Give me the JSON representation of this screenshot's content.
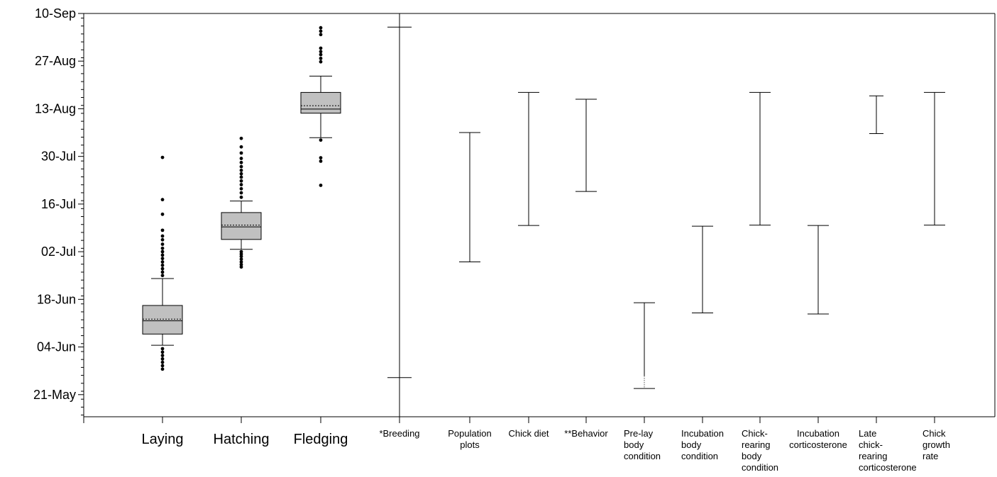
{
  "chart_data": {
    "type": "boxplot+range",
    "title": "",
    "xlabel": "",
    "ylabel": "",
    "y_axis": {
      "ticks": [
        {
          "label": "10-Sep",
          "day": 253
        },
        {
          "label": "27-Aug",
          "day": 239
        },
        {
          "label": "13-Aug",
          "day": 225
        },
        {
          "label": "30-Jul",
          "day": 211
        },
        {
          "label": "16-Jul",
          "day": 197
        },
        {
          "label": "02-Jul",
          "day": 183
        },
        {
          "label": "18-Jun",
          "day": 169
        },
        {
          "label": "04-Jun",
          "day": 155
        },
        {
          "label": "21-May",
          "day": 141
        }
      ],
      "range_day": [
        134.5,
        253
      ]
    },
    "boxplots": [
      {
        "label": "Laying",
        "whisker_low": 155.5,
        "q1": 158.8,
        "median": 162.7,
        "mean": 163.2,
        "q3": 167.2,
        "whisker_high": 175.1,
        "outliers": [
          210.7,
          198.3,
          194.0,
          189.3,
          187.6,
          186.5,
          185.2,
          184.0,
          183.0,
          182.0,
          181.0,
          180.0,
          179.0,
          178.0,
          177.0,
          176.0,
          154.5,
          153.5,
          152.5,
          151.5,
          150.5,
          149.5,
          148.5
        ]
      },
      {
        "label": "Hatching",
        "whisker_low": 183.7,
        "q1": 186.6,
        "median": 190.3,
        "mean": 190.8,
        "q3": 194.5,
        "whisker_high": 197.9,
        "outliers": [
          216.3,
          213.8,
          212.0,
          210.4,
          209.2,
          208.0,
          206.9,
          205.9,
          204.9,
          203.8,
          202.7,
          201.5,
          200.3,
          199.0,
          183.0,
          182.3,
          181.6,
          180.8,
          180.0,
          179.2,
          178.5
        ]
      },
      {
        "label": "Fledging",
        "whisker_low": 216.5,
        "q1": 223.7,
        "median": 224.9,
        "mean": 225.9,
        "q3": 229.8,
        "whisker_high": 234.6,
        "outliers": [
          248.8,
          247.8,
          246.8,
          242.8,
          241.8,
          240.9,
          239.8,
          238.8,
          215.8,
          210.6,
          209.6,
          202.5
        ]
      }
    ],
    "ranges": [
      {
        "label": "*Breeding",
        "low": 146.0,
        "high": 249.0
      },
      {
        "label": "Population plots",
        "low": 180.0,
        "high": 218.0
      },
      {
        "label": "Chick diet",
        "low": 190.7,
        "high": 229.8
      },
      {
        "label": "**Behavior",
        "low": 200.7,
        "high": 227.8
      },
      {
        "label": "Pre-lay body condition",
        "low": 142.8,
        "high": 168.0
      },
      {
        "label": "Incubation body condition",
        "low": 165.0,
        "high": 190.5
      },
      {
        "label": "Chick-rearing body condition",
        "low": 190.8,
        "high": 229.8
      },
      {
        "label": "Incubation corticosterone",
        "low": 164.7,
        "high": 190.7
      },
      {
        "label": "Late chick-rearing corticosterone",
        "low": 217.7,
        "high": 228.8
      },
      {
        "label": "Chick growth rate",
        "low": 190.8,
        "high": 229.8
      }
    ]
  }
}
